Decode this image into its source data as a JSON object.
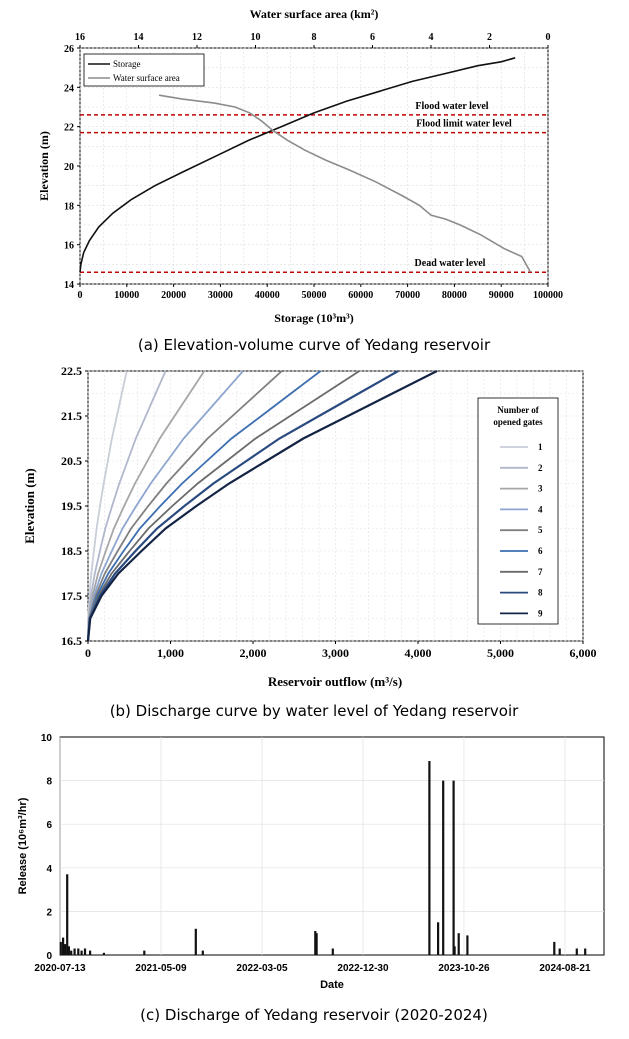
{
  "colors": {
    "storage": "#111111",
    "wsa": "#8c8c8c",
    "dashed_lines": "#c00000",
    "release": "#111111"
  },
  "captions": {
    "a": "(a) Elevation-volume curve of Yedang reservoir",
    "b": "(b) Discharge curve by water level of Yedang reservoir",
    "c": "(c) Discharge of Yedang reservoir (2020-2024)"
  },
  "chart_data": [
    {
      "type": "line",
      "title": "",
      "xlabel": "Storage (10³m³)",
      "x2label": "Water surface area (km²)",
      "ylabel": "Elevation (m)",
      "xlim": [
        0,
        100000
      ],
      "x2lim": [
        16,
        0
      ],
      "ylim": [
        14,
        26
      ],
      "xticks": [
        "0",
        "10000",
        "20000",
        "30000",
        "40000",
        "50000",
        "60000",
        "70000",
        "80000",
        "90000",
        "100000"
      ],
      "x2ticks": [
        "16",
        "14",
        "12",
        "10",
        "8",
        "6",
        "4",
        "2",
        "0"
      ],
      "yticks": [
        "14",
        "16",
        "18",
        "20",
        "22",
        "24",
        "26"
      ],
      "grid": true,
      "legend_position": "top-left",
      "series": [
        {
          "name": "Storage",
          "axis": "bottom",
          "x": [
            0,
            200,
            800,
            2000,
            4000,
            7000,
            11000,
            16000,
            22000,
            29000,
            36000,
            43000,
            50000,
            57000,
            64000,
            71000,
            78000,
            85000,
            90000,
            93000
          ],
          "y": [
            14.6,
            15.0,
            15.6,
            16.2,
            16.9,
            17.6,
            18.3,
            19.0,
            19.7,
            20.5,
            21.3,
            22.0,
            22.7,
            23.3,
            23.8,
            24.3,
            24.7,
            25.1,
            25.3,
            25.5
          ]
        },
        {
          "name": "Water surface area",
          "axis": "top",
          "x": [
            13.3,
            12.5,
            11.4,
            10.7,
            10.2,
            9.8,
            9.4,
            8.9,
            8.3,
            7.6,
            6.8,
            5.9,
            5.0,
            4.4,
            4.0,
            3.5,
            3.0,
            2.3,
            1.5,
            0.9,
            0.6
          ],
          "y": [
            23.6,
            23.4,
            23.2,
            23.0,
            22.7,
            22.3,
            21.8,
            21.3,
            20.8,
            20.3,
            19.8,
            19.2,
            18.5,
            18.0,
            17.5,
            17.3,
            17.0,
            16.5,
            15.8,
            15.4,
            14.6
          ]
        }
      ],
      "reference_lines": [
        {
          "label": "Flood water level",
          "y": 22.6
        },
        {
          "label": "Flood limit water level",
          "y": 21.7
        },
        {
          "label": "Dead water level",
          "y": 14.6
        }
      ]
    },
    {
      "type": "line",
      "title": "",
      "xlabel": "Reservoir outflow (m³/s)",
      "ylabel": "Elevation (m)",
      "xlim": [
        0,
        6000
      ],
      "ylim": [
        16.5,
        22.5
      ],
      "xticks": [
        "0",
        "1,000",
        "2,000",
        "3,000",
        "4,000",
        "5,000",
        "6,000"
      ],
      "yticks": [
        "16.5",
        "17.5",
        "18.5",
        "19.5",
        "20.5",
        "21.5",
        "22.5"
      ],
      "grid": true,
      "legend_title": "Number of opened gates",
      "legend_position": "right",
      "series": [
        {
          "name": "1",
          "color": "#c8cdd8",
          "y": [
            16.5,
            17.0,
            17.5,
            18.0,
            18.5,
            19.0,
            19.5,
            20.0,
            20.5,
            21.0,
            21.5,
            22.0,
            22.5
          ],
          "x": [
            0,
            3,
            18,
            40,
            72,
            104,
            146,
            190,
            240,
            290,
            350,
            410,
            470
          ]
        },
        {
          "name": "2",
          "color": "#b2b8cc",
          "y": [
            16.5,
            17.0,
            17.5,
            18.0,
            18.5,
            19.0,
            19.5,
            20.0,
            20.5,
            21.0,
            21.5,
            22.0,
            22.5
          ],
          "x": [
            0,
            6,
            36,
            82,
            144,
            210,
            292,
            380,
            480,
            580,
            700,
            820,
            940
          ]
        },
        {
          "name": "3",
          "color": "#a6a6a6",
          "y": [
            16.5,
            17.0,
            17.5,
            18.0,
            18.5,
            19.0,
            19.5,
            20.0,
            20.5,
            21.0,
            21.5,
            22.0,
            22.5
          ],
          "x": [
            0,
            9,
            54,
            122,
            216,
            314,
            438,
            570,
            720,
            870,
            1050,
            1230,
            1410
          ]
        },
        {
          "name": "4",
          "color": "#8ea6cf",
          "y": [
            16.5,
            17.0,
            17.5,
            18.0,
            18.5,
            19.0,
            19.5,
            20.0,
            20.5,
            21.0,
            21.5,
            22.0,
            22.5
          ],
          "x": [
            0,
            12,
            72,
            164,
            288,
            418,
            584,
            760,
            960,
            1160,
            1400,
            1640,
            1880
          ]
        },
        {
          "name": "5",
          "color": "#808080",
          "y": [
            16.5,
            17.0,
            17.5,
            18.0,
            18.5,
            19.0,
            19.5,
            20.0,
            20.5,
            21.0,
            21.5,
            22.0,
            22.5
          ],
          "x": [
            0,
            15,
            90,
            204,
            360,
            522,
            730,
            950,
            1200,
            1450,
            1750,
            2050,
            2350
          ]
        },
        {
          "name": "6",
          "color": "#3d6fb0",
          "y": [
            16.5,
            17.0,
            17.5,
            18.0,
            18.5,
            19.0,
            19.5,
            20.0,
            20.5,
            21.0,
            21.5,
            22.0,
            22.5
          ],
          "x": [
            0,
            18,
            108,
            246,
            432,
            628,
            876,
            1140,
            1440,
            1740,
            2100,
            2460,
            2820
          ]
        },
        {
          "name": "7",
          "color": "#6b6b6b",
          "y": [
            16.5,
            17.0,
            17.5,
            18.0,
            18.5,
            19.0,
            19.5,
            20.0,
            20.5,
            21.0,
            21.5,
            22.0,
            22.5
          ],
          "x": [
            0,
            21,
            126,
            286,
            504,
            732,
            1022,
            1330,
            1680,
            2030,
            2450,
            2870,
            3290
          ]
        },
        {
          "name": "8",
          "color": "#2a4a80",
          "y": [
            16.5,
            17.0,
            17.5,
            18.0,
            18.5,
            19.0,
            19.5,
            20.0,
            20.5,
            21.0,
            21.5,
            22.0,
            22.5
          ],
          "x": [
            0,
            24,
            144,
            328,
            576,
            836,
            1168,
            1520,
            1920,
            2320,
            2800,
            3280,
            3760
          ]
        },
        {
          "name": "9",
          "color": "#142445",
          "y": [
            16.5,
            17.0,
            17.5,
            18.0,
            18.5,
            19.0,
            19.5,
            20.0,
            20.5,
            21.0,
            21.5,
            22.0,
            22.5
          ],
          "x": [
            0,
            27,
            162,
            368,
            648,
            940,
            1314,
            1710,
            2160,
            2610,
            3150,
            3690,
            4230
          ]
        }
      ]
    },
    {
      "type": "bar",
      "title": "",
      "xlabel": "Date",
      "ylabel": "Release (10⁶m³/hr)",
      "ylim": [
        0,
        10
      ],
      "yticks": [
        "0",
        "2",
        "4",
        "6",
        "8",
        "10"
      ],
      "xticks": [
        "2020-07-13",
        "2021-05-09",
        "2022-03-05",
        "2022-12-30",
        "2023-10-26",
        "2024-08-21"
      ],
      "grid": true,
      "bars": [
        {
          "date": "2020-07-15",
          "value": 0.6
        },
        {
          "date": "2020-07-22",
          "value": 0.8
        },
        {
          "date": "2020-07-28",
          "value": 0.5
        },
        {
          "date": "2020-08-03",
          "value": 3.7
        },
        {
          "date": "2020-08-08",
          "value": 0.4
        },
        {
          "date": "2020-08-15",
          "value": 0.2
        },
        {
          "date": "2020-08-25",
          "value": 0.3
        },
        {
          "date": "2020-09-05",
          "value": 0.3
        },
        {
          "date": "2020-09-15",
          "value": 0.2
        },
        {
          "date": "2020-09-25",
          "value": 0.3
        },
        {
          "date": "2020-10-10",
          "value": 0.2
        },
        {
          "date": "2020-11-20",
          "value": 0.1
        },
        {
          "date": "2021-03-20",
          "value": 0.2
        },
        {
          "date": "2021-08-20",
          "value": 1.2
        },
        {
          "date": "2021-09-10",
          "value": 0.2
        },
        {
          "date": "2022-08-10",
          "value": 1.1
        },
        {
          "date": "2022-08-14",
          "value": 1.0
        },
        {
          "date": "2022-10-01",
          "value": 0.3
        },
        {
          "date": "2023-07-15",
          "value": 8.9
        },
        {
          "date": "2023-08-10",
          "value": 1.5
        },
        {
          "date": "2023-08-25",
          "value": 8.0
        },
        {
          "date": "2023-09-25",
          "value": 8.0
        },
        {
          "date": "2023-09-28",
          "value": 0.4
        },
        {
          "date": "2023-10-10",
          "value": 1.0
        },
        {
          "date": "2023-11-05",
          "value": 0.9
        },
        {
          "date": "2024-07-20",
          "value": 0.6
        },
        {
          "date": "2024-08-05",
          "value": 0.3
        },
        {
          "date": "2024-09-25",
          "value": 0.3
        },
        {
          "date": "2024-10-20",
          "value": 0.3
        }
      ]
    }
  ]
}
